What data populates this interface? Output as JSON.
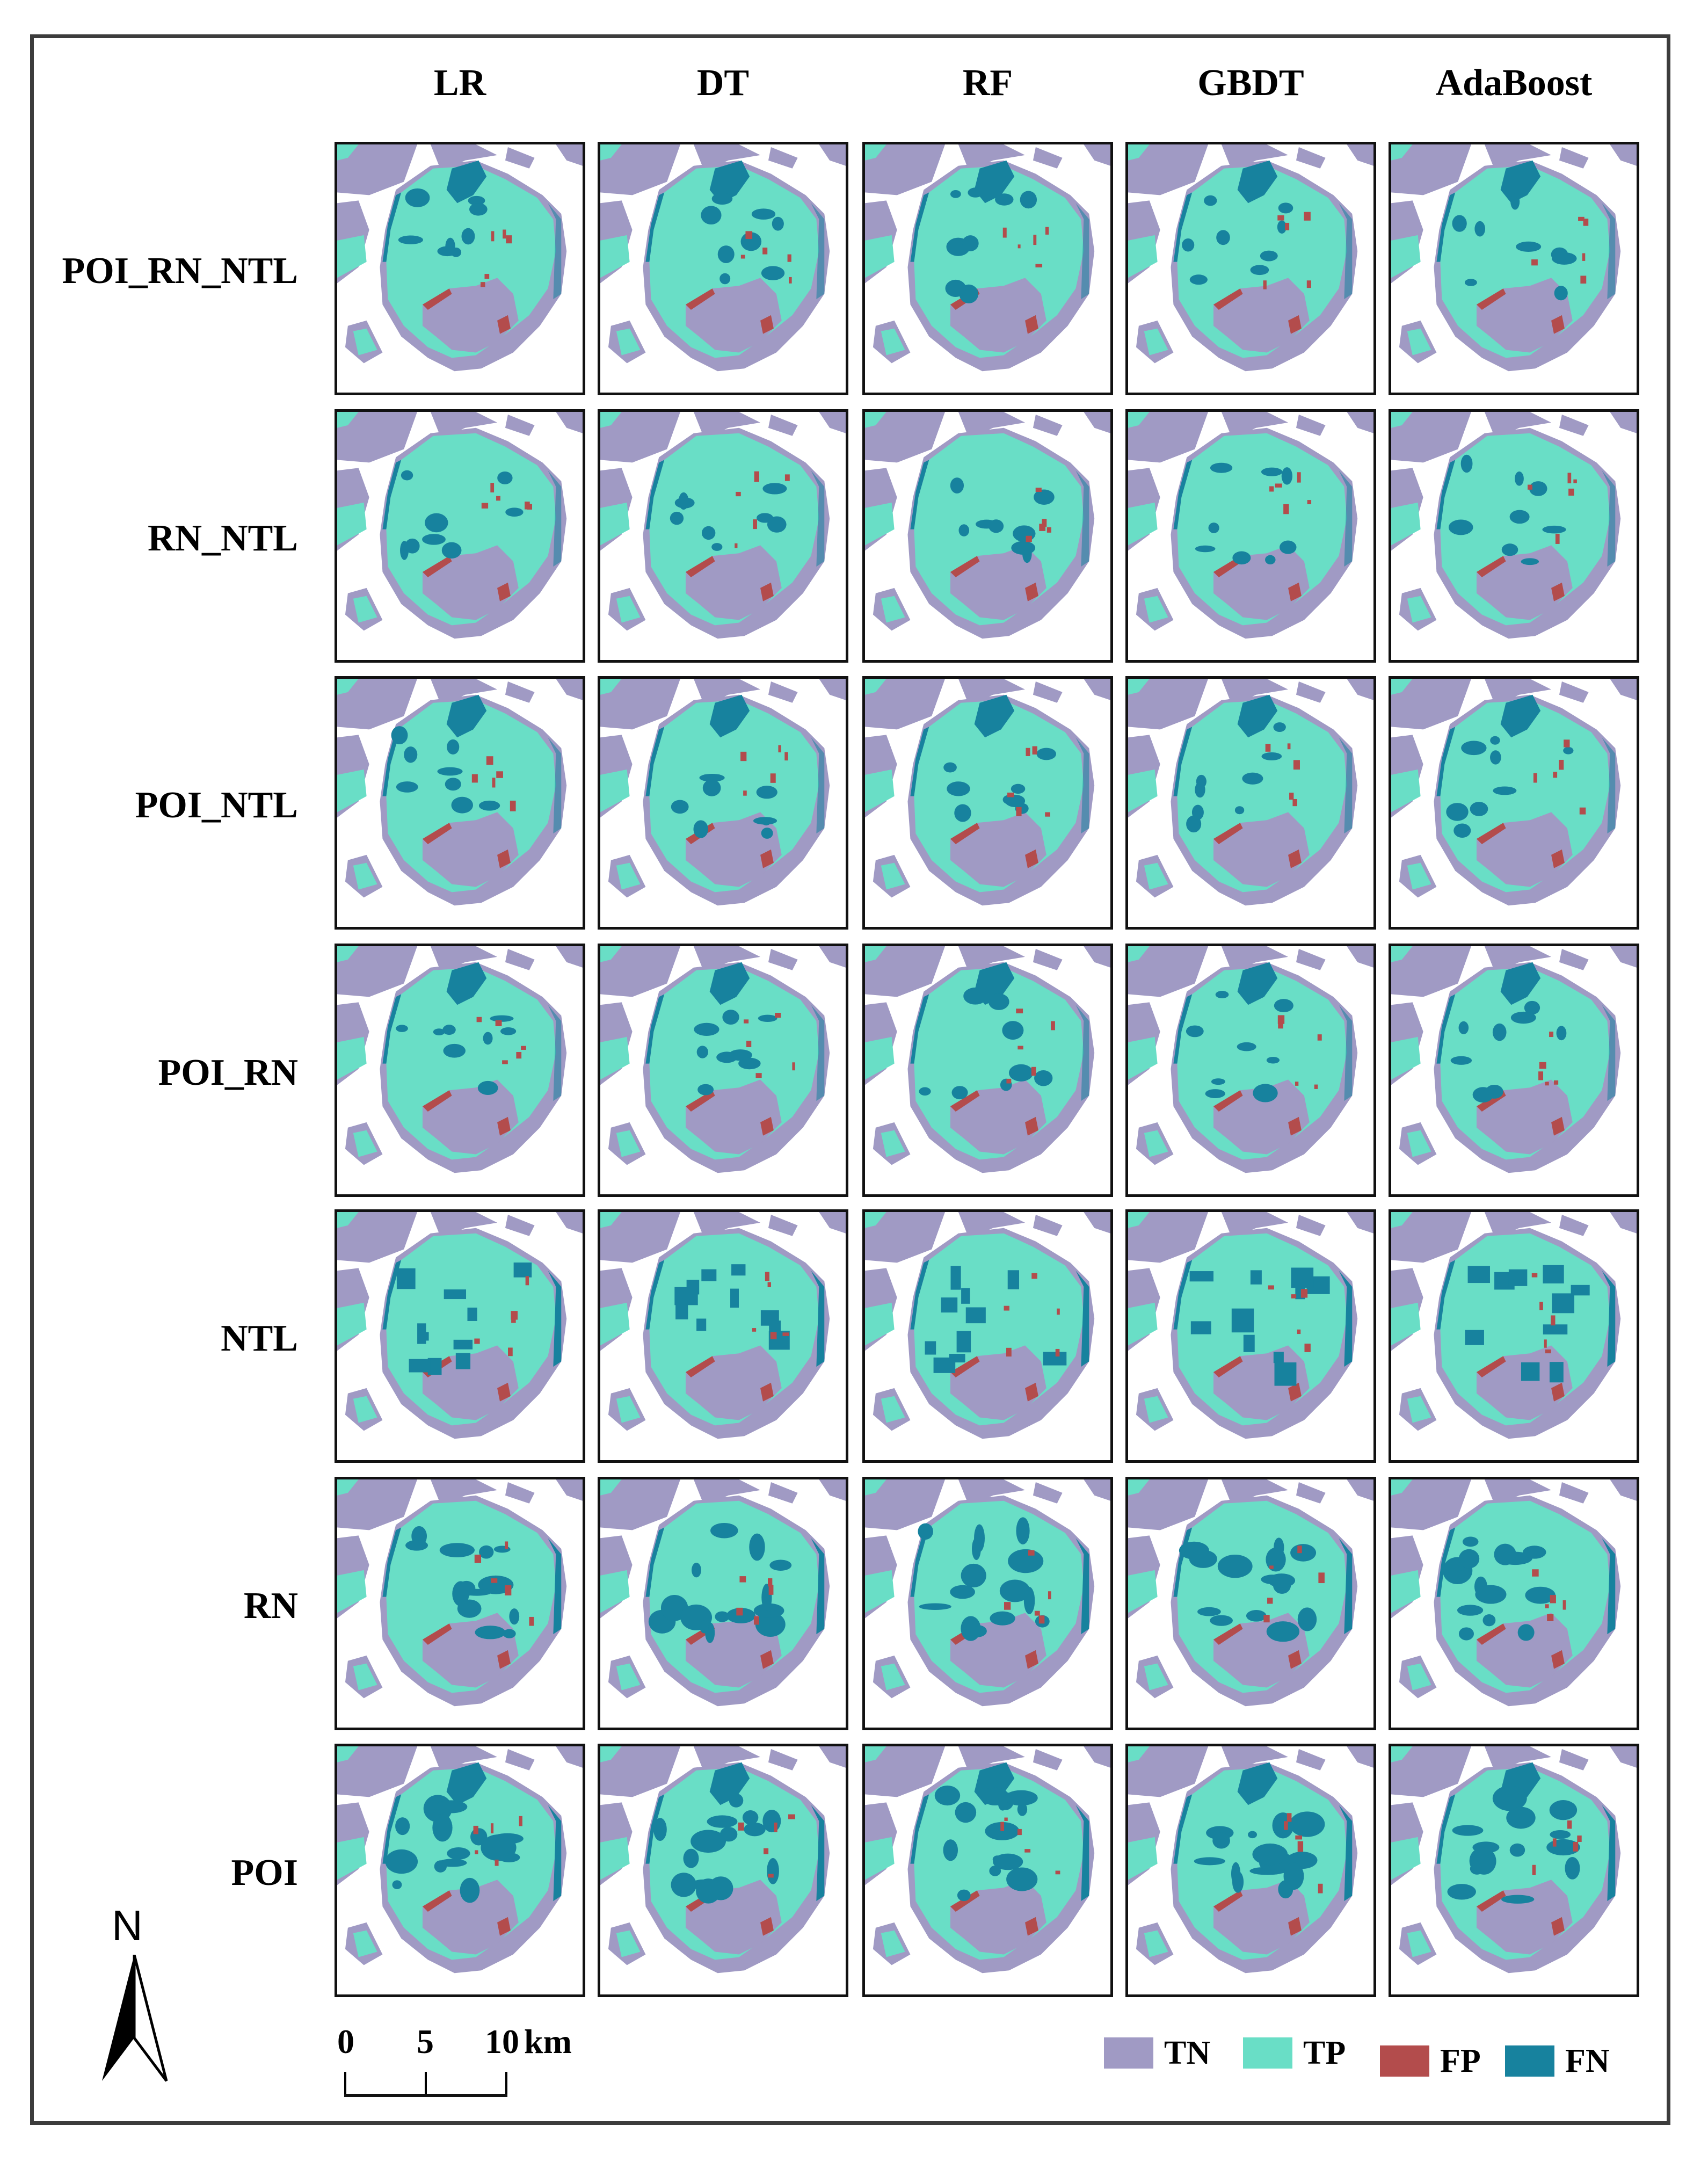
{
  "figure": {
    "columns": [
      "LR",
      "DT",
      "RF",
      "GBDT",
      "AdaBoost"
    ],
    "rows": [
      "POI_RN_NTL",
      "RN_NTL",
      "POI_NTL",
      "POI_RN",
      "NTL",
      "RN",
      "POI"
    ]
  },
  "legend": {
    "items": [
      {
        "label": "TN",
        "color": "#A09AC4"
      },
      {
        "label": "TP",
        "color": "#69DEC6"
      },
      {
        "label": "FP",
        "color": "#B34C4C"
      },
      {
        "label": "FN",
        "color": "#17829E"
      }
    ]
  },
  "scale_bar": {
    "ticks": [
      "0",
      "5",
      "10"
    ],
    "unit": "km"
  },
  "north_arrow": {
    "label": "N"
  },
  "colors": {
    "TN": "#A09AC4",
    "TP": "#69DEC6",
    "FP": "#B34C4C",
    "FN": "#17829E",
    "background": "#FFFFFF",
    "frame": "#3C3C3C"
  }
}
